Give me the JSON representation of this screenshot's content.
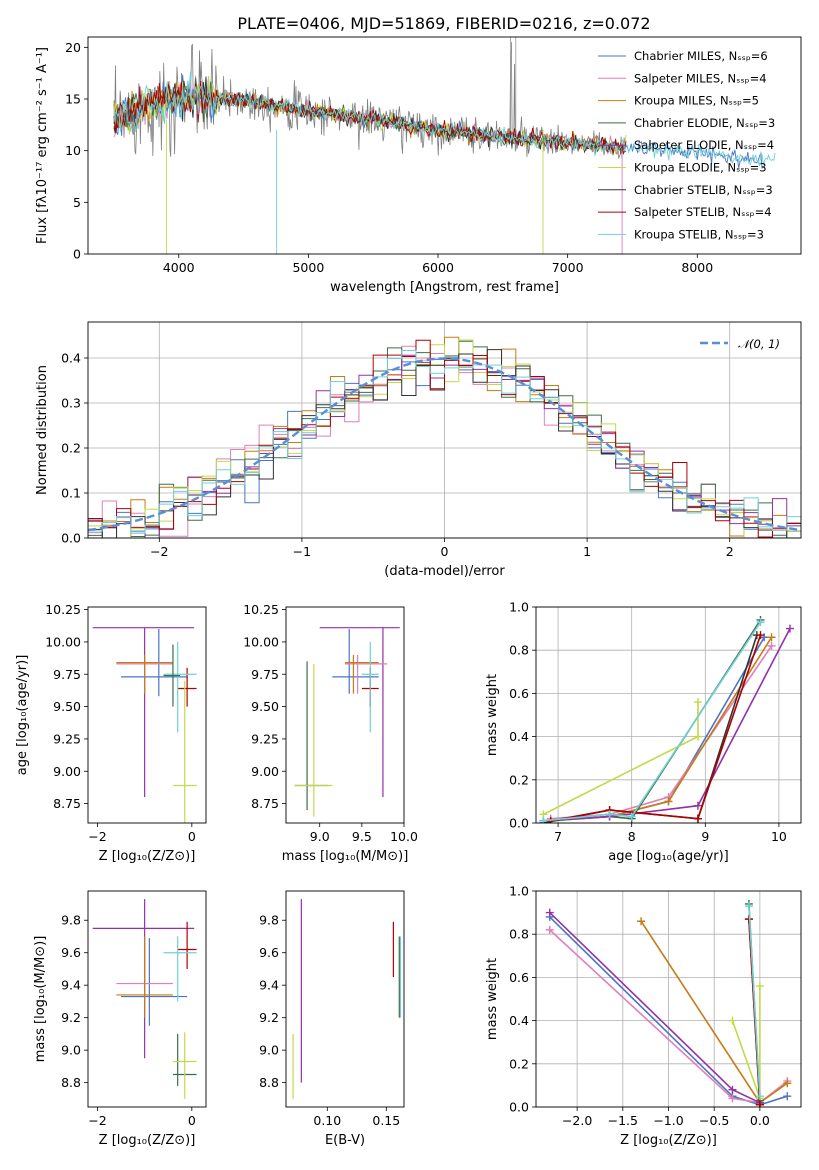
{
  "title": "PLATE=0406, MJD=51869, FIBERID=0216, z=0.072",
  "colors": [
    "#4a74c9",
    "#e07fb8",
    "#c87a14",
    "#3b6e4a",
    "#9332a8",
    "#c2d94a",
    "#333333",
    "#b00000",
    "#6fd0d4"
  ],
  "chart_data": [
    {
      "id": "spectrum",
      "type": "line",
      "title": "PLATE=0406, MJD=51869, FIBERID=0216, z=0.072",
      "xlabel": "wavelength [Angstrom, rest frame]",
      "ylabel": "Flux [fλ10⁻¹⁷ erg cm⁻² s⁻¹ A⁻¹]",
      "xlim": [
        3300,
        8800
      ],
      "ylim": [
        0,
        21
      ],
      "xticks": [
        4000,
        5000,
        6000,
        7000,
        8000
      ],
      "yticks": [
        0,
        5,
        10,
        15,
        20
      ],
      "legend_position": "top-right",
      "series": [
        {
          "name": "Chabrier MILES, Nₛₛₚ=6"
        },
        {
          "name": "Salpeter MILES, Nₛₛₚ=4"
        },
        {
          "name": "Kroupa MILES, Nₛₛₚ=5"
        },
        {
          "name": "Chabrier ELODIE, Nₛₛₚ=3"
        },
        {
          "name": "Salpeter ELODIE, Nₛₛₚ=4"
        },
        {
          "name": "Kroupa ELODIE, Nₛₛₚ=3"
        },
        {
          "name": "Chabrier STELIB, Nₛₛₚ=3"
        },
        {
          "name": "Salpeter STELIB, Nₛₛₚ=4"
        },
        {
          "name": "Kroupa STELIB, Nₛₛₚ=3"
        }
      ],
      "continuum": {
        "x": [
          3500,
          3700,
          3900,
          4100,
          4300,
          4600,
          5000,
          5500,
          6000,
          6500,
          7000,
          7500,
          8000,
          8500
        ],
        "y": [
          12.8,
          14.0,
          15.0,
          15.3,
          15.0,
          14.8,
          13.8,
          13.0,
          12.0,
          11.3,
          10.7,
          10.3,
          9.8,
          9.1
        ]
      }
    },
    {
      "id": "residuals",
      "type": "line",
      "xlabel": "(data-model)/error",
      "ylabel": "Normed distribution",
      "xlim": [
        -2.5,
        2.5
      ],
      "ylim": [
        0,
        0.48
      ],
      "xticks": [
        -2,
        -1,
        0,
        1,
        2
      ],
      "yticks": [
        0.0,
        0.1,
        0.2,
        0.3,
        0.4
      ],
      "grid": true,
      "legend_position": "top-right",
      "reference": {
        "name": "𝒩(0, 1)",
        "color": "#5b8ed6"
      }
    },
    {
      "id": "age_vs_Z",
      "type": "scatter",
      "xlabel": "Z [log₁₀(Z/Z⊙)]",
      "ylabel": "age  [log₁₀(age/yr)]",
      "xlim": [
        -2.2,
        0.3
      ],
      "ylim": [
        8.6,
        10.27
      ],
      "xticks": [
        -2,
        0
      ],
      "yticks": [
        8.75,
        9.0,
        9.25,
        9.5,
        9.75,
        10.0,
        10.25
      ],
      "points": [
        {
          "s": 4,
          "x": -1.0,
          "y": 10.11,
          "xe": [
            -2.1,
            0.05
          ],
          "ye": [
            8.8,
            10.11
          ]
        },
        {
          "s": 0,
          "x": -0.7,
          "y": 9.73,
          "xe": [
            -1.5,
            -0.1
          ],
          "ye": [
            9.58,
            10.1
          ]
        },
        {
          "s": 1,
          "x": -1.0,
          "y": 9.83,
          "xe": [
            -1.6,
            -0.4
          ],
          "ye": [
            9.6,
            9.85
          ]
        },
        {
          "s": 2,
          "x": -1.0,
          "y": 9.84,
          "xe": [
            -1.6,
            -0.4
          ],
          "ye": [
            9.6,
            9.9
          ]
        },
        {
          "s": 7,
          "x": -0.1,
          "y": 9.64,
          "xe": [
            -0.3,
            0.1
          ],
          "ye": [
            9.5,
            9.8
          ]
        },
        {
          "s": 8,
          "x": -0.3,
          "y": 9.75,
          "xe": [
            -0.6,
            0.1
          ],
          "ye": [
            9.3,
            10.0
          ]
        },
        {
          "s": 3,
          "x": -0.4,
          "y": 9.74,
          "xe": [
            -0.6,
            -0.25
          ],
          "ye": [
            9.5,
            9.98
          ]
        },
        {
          "s": 5,
          "x": -0.15,
          "y": 8.89,
          "xe": [
            -0.4,
            0.1
          ],
          "ye": [
            8.6,
            9.7
          ]
        }
      ]
    },
    {
      "id": "age_vs_mass",
      "type": "scatter",
      "xlabel": "mass [log₁₀(M/M⊙)]",
      "xlim": [
        8.6,
        10.0
      ],
      "ylim": [
        8.6,
        10.27
      ],
      "xticks": [
        9.0,
        9.5,
        10.0
      ],
      "yticks": [
        8.75,
        9.0,
        9.25,
        9.5,
        9.75,
        10.0,
        10.25
      ],
      "points": [
        {
          "s": 4,
          "x": 9.75,
          "y": 10.11,
          "xe": [
            9.0,
            9.95
          ],
          "ye": [
            8.8,
            10.11
          ]
        },
        {
          "s": 0,
          "x": 9.35,
          "y": 9.73,
          "xe": [
            9.15,
            9.7
          ],
          "ye": [
            9.6,
            10.1
          ]
        },
        {
          "s": 1,
          "x": 9.45,
          "y": 9.83,
          "xe": [
            9.3,
            9.8
          ],
          "ye": [
            9.6,
            9.9
          ]
        },
        {
          "s": 2,
          "x": 9.4,
          "y": 9.84,
          "xe": [
            9.3,
            9.7
          ],
          "ye": [
            9.6,
            9.9
          ]
        },
        {
          "s": 7,
          "x": 9.6,
          "y": 9.64,
          "xe": [
            9.5,
            9.7
          ],
          "ye": [
            9.5,
            9.8
          ]
        },
        {
          "s": 8,
          "x": 9.6,
          "y": 9.75,
          "xe": [
            9.5,
            9.7
          ],
          "ye": [
            9.3,
            10.0
          ]
        },
        {
          "s": 3,
          "x": 8.85,
          "y": 8.89,
          "xe": [
            8.7,
            9.1
          ],
          "ye": [
            8.7,
            9.85
          ]
        },
        {
          "s": 5,
          "x": 8.93,
          "y": 8.89,
          "xe": [
            8.7,
            9.15
          ],
          "ye": [
            8.65,
            9.83
          ]
        }
      ]
    },
    {
      "id": "mw_vs_age",
      "type": "line",
      "xlabel": "age  [log₁₀(age/yr)]",
      "ylabel": "mass weight",
      "xlim": [
        6.7,
        10.3
      ],
      "ylim": [
        0,
        1.0
      ],
      "xticks": [
        7,
        8,
        9,
        10
      ],
      "yticks": [
        0.0,
        0.2,
        0.4,
        0.6,
        0.8,
        1.0
      ],
      "grid": true,
      "series": [
        {
          "s": 0,
          "x": [
            6.9,
            7.7,
            8.5,
            9.8
          ],
          "y": [
            0.01,
            0.03,
            0.1,
            0.86
          ]
        },
        {
          "s": 1,
          "x": [
            6.9,
            7.7,
            8.5,
            9.9
          ],
          "y": [
            0.02,
            0.04,
            0.12,
            0.82
          ]
        },
        {
          "s": 2,
          "x": [
            6.9,
            7.7,
            8.5,
            9.9
          ],
          "y": [
            0.01,
            0.03,
            0.1,
            0.86
          ]
        },
        {
          "s": 3,
          "x": [
            6.8,
            7.7,
            8.0,
            9.75
          ],
          "y": [
            0.01,
            0.03,
            0.02,
            0.94
          ]
        },
        {
          "s": 4,
          "x": [
            6.8,
            7.7,
            8.9,
            10.15
          ],
          "y": [
            0.01,
            0.03,
            0.08,
            0.9
          ]
        },
        {
          "s": 5,
          "x": [
            6.8,
            8.9,
            8.9
          ],
          "y": [
            0.04,
            0.4,
            0.56
          ]
        },
        {
          "s": 6,
          "x": [
            6.8,
            7.7,
            8.9,
            9.7
          ],
          "y": [
            0.0,
            0.06,
            0.02,
            0.87
          ]
        },
        {
          "s": 7,
          "x": [
            6.9,
            7.7,
            8.9,
            9.75
          ],
          "y": [
            0.01,
            0.06,
            0.02,
            0.87
          ]
        },
        {
          "s": 8,
          "x": [
            6.8,
            7.7,
            8.0,
            9.75
          ],
          "y": [
            0.01,
            0.04,
            0.03,
            0.93
          ]
        }
      ]
    },
    {
      "id": "mass_vs_Z",
      "type": "scatter",
      "xlabel": "Z [log₁₀(Z/Z⊙)]",
      "ylabel": "mass [log₁₀(M/M⊙)]",
      "xlim": [
        -2.2,
        0.3
      ],
      "ylim": [
        8.65,
        9.98
      ],
      "xticks": [
        -2,
        0
      ],
      "yticks": [
        8.8,
        9.0,
        9.2,
        9.4,
        9.6,
        9.8
      ],
      "points": [
        {
          "s": 4,
          "x": -1.0,
          "y": 9.75,
          "xe": [
            -2.1,
            0.05
          ],
          "ye": [
            8.95,
            9.93
          ]
        },
        {
          "s": 0,
          "x": -0.9,
          "y": 9.33,
          "xe": [
            -1.5,
            -0.1
          ],
          "ye": [
            9.15,
            9.69
          ]
        },
        {
          "s": 1,
          "x": -1.0,
          "y": 9.41,
          "xe": [
            -1.6,
            -0.4
          ],
          "ye": [
            9.3,
            9.7
          ]
        },
        {
          "s": 2,
          "x": -1.0,
          "y": 9.34,
          "xe": [
            -1.6,
            -0.4
          ],
          "ye": [
            9.2,
            9.7
          ]
        },
        {
          "s": 7,
          "x": -0.1,
          "y": 9.62,
          "xe": [
            -0.3,
            0.1
          ],
          "ye": [
            9.5,
            9.79
          ]
        },
        {
          "s": 8,
          "x": -0.3,
          "y": 9.6,
          "xe": [
            -0.6,
            0.1
          ],
          "ye": [
            9.3,
            9.7
          ]
        },
        {
          "s": 3,
          "x": -0.3,
          "y": 8.85,
          "xe": [
            -0.4,
            0.1
          ],
          "ye": [
            8.78,
            9.1
          ]
        },
        {
          "s": 5,
          "x": -0.15,
          "y": 8.93,
          "xe": [
            -0.4,
            0.1
          ],
          "ye": [
            8.7,
            9.11
          ]
        }
      ]
    },
    {
      "id": "mass_vs_ebv",
      "type": "scatter",
      "xlabel": "E(B-V)",
      "xlim": [
        0.065,
        0.165
      ],
      "ylim": [
        8.65,
        9.98
      ],
      "xticks": [
        0.1,
        0.15
      ],
      "yticks": [
        8.8,
        9.0,
        9.2,
        9.4,
        9.6,
        9.8
      ],
      "points": [
        {
          "s": 4,
          "x": 0.078,
          "y": 9.3,
          "xe": [
            0.078,
            0.078
          ],
          "ye": [
            8.8,
            9.93
          ]
        },
        {
          "s": 5,
          "x": 0.071,
          "y": 8.9,
          "xe": [
            0.071,
            0.071
          ],
          "ye": [
            8.7,
            9.1
          ]
        },
        {
          "s": 7,
          "x": 0.156,
          "y": 9.6,
          "xe": [
            0.156,
            0.156
          ],
          "ye": [
            9.45,
            9.79
          ]
        },
        {
          "s": 8,
          "x": 0.162,
          "y": 9.45,
          "xe": [
            0.162,
            0.162
          ],
          "ye": [
            9.2,
            9.7
          ]
        },
        {
          "s": 3,
          "x": 0.161,
          "y": 9.45,
          "xe": [
            0.161,
            0.161
          ],
          "ye": [
            9.2,
            9.7
          ]
        }
      ]
    },
    {
      "id": "mw_vs_Z",
      "type": "line",
      "xlabel": "Z [log₁₀(Z/Z⊙)]",
      "ylabel": "mass weight",
      "xlim": [
        -2.45,
        0.45
      ],
      "ylim": [
        0,
        1.0
      ],
      "xticks": [
        -2.0,
        -1.5,
        -1.0,
        -0.5,
        0.0
      ],
      "yticks": [
        0.0,
        0.2,
        0.4,
        0.6,
        0.8,
        1.0
      ],
      "grid": true,
      "series": [
        {
          "s": 0,
          "x": [
            -2.3,
            -0.3,
            0.0,
            0.3
          ],
          "y": [
            0.88,
            0.05,
            0.01,
            0.05
          ]
        },
        {
          "s": 1,
          "x": [
            -2.3,
            -0.3,
            0.0,
            0.3
          ],
          "y": [
            0.82,
            0.04,
            0.02,
            0.12
          ]
        },
        {
          "s": 2,
          "x": [
            -1.3,
            0.0,
            0.3
          ],
          "y": [
            0.86,
            0.02,
            0.11
          ]
        },
        {
          "s": 3,
          "x": [
            -0.12,
            0.0
          ],
          "y": [
            0.94,
            0.03
          ]
        },
        {
          "s": 4,
          "x": [
            -2.3,
            -0.3,
            0.0
          ],
          "y": [
            0.9,
            0.08,
            0.02
          ]
        },
        {
          "s": 5,
          "x": [
            -0.3,
            0.0,
            0.0
          ],
          "y": [
            0.4,
            0.04,
            0.56
          ]
        },
        {
          "s": 6,
          "x": [
            -0.12,
            0.0
          ],
          "y": [
            0.87,
            0.01
          ]
        },
        {
          "s": 7,
          "x": [
            -0.12,
            0.0
          ],
          "y": [
            0.87,
            0.01
          ]
        },
        {
          "s": 8,
          "x": [
            -0.12,
            0.0
          ],
          "y": [
            0.93,
            0.05
          ]
        }
      ]
    }
  ]
}
